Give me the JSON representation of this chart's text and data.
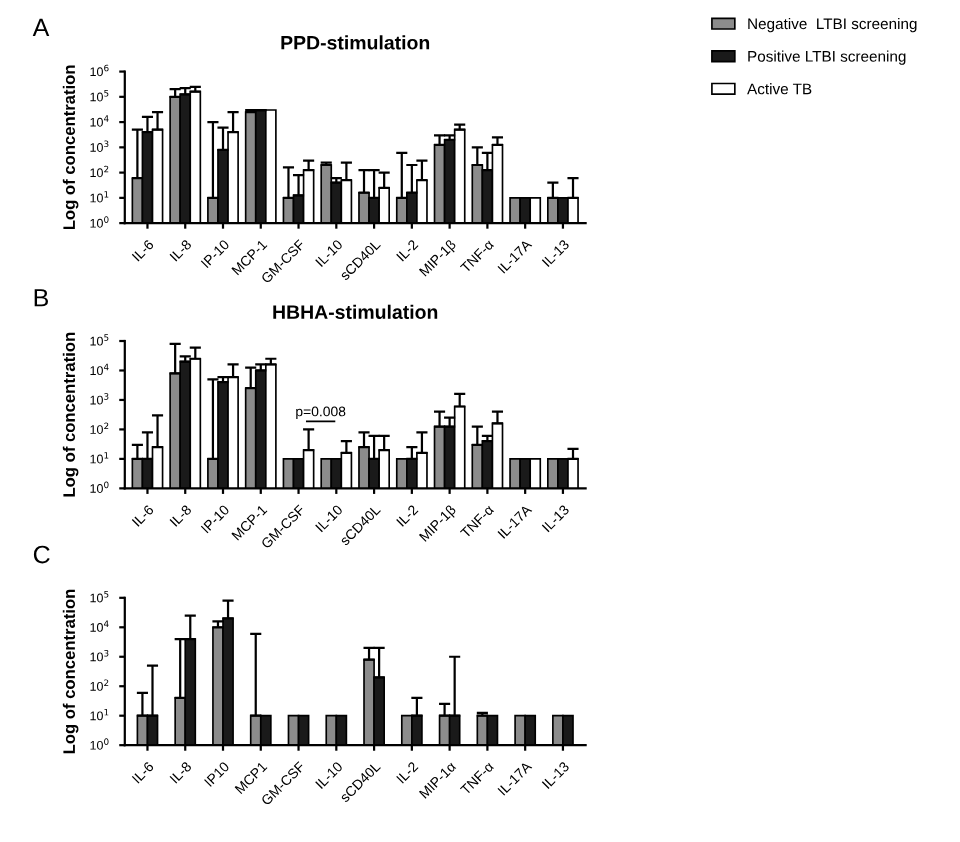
{
  "chart_data": [
    {
      "type": "bar",
      "title": "PPD-stimulation",
      "ylabel": "Log of concentration",
      "annotations": [
        "A"
      ],
      "categories": [
        "IL-6",
        "IL-8",
        "IP-10",
        "MCP-1",
        "GM-CSF",
        "IL-10",
        "sCD40L",
        "IL-2",
        "MIP-1β",
        "TNF-α",
        "IL-17A",
        "IL-13"
      ],
      "log": true,
      "ylim": [
        1,
        1000000
      ],
      "yticks": [
        {
          "value": 1,
          "label": "10$^{0}$"
        },
        {
          "value": 10,
          "label": "10$^{1}$"
        },
        {
          "value": 100,
          "label": "10$^{2}$"
        },
        {
          "value": 1000,
          "label": "10$^{3}$"
        },
        {
          "value": 10000,
          "label": "10$^{4}$"
        },
        {
          "value": 100000,
          "label": "10$^{5}$"
        },
        {
          "value": 1000000,
          "label": "10$^{6}$"
        }
      ],
      "legend": "top right",
      "grid": false,
      "series": [
        {
          "name": "Negative  LTBI screening",
          "color": "#8c8c8c",
          "values": [
            60,
            100000,
            10,
            25000,
            10,
            200,
            16,
            10,
            1250,
            200,
            10,
            10
          ],
          "errors": [
            [
              60,
              5000
            ],
            [
              100000,
              200000
            ],
            [
              10,
              10000
            ],
            [
              25000,
              30000
            ],
            [
              10,
              160
            ],
            [
              200,
              250
            ],
            [
              16,
              125
            ],
            [
              10,
              600
            ],
            [
              1250,
              3000
            ],
            [
              200,
              1000
            ],
            null,
            [
              10,
              40
            ]
          ]
        },
        {
          "name": "Positive LTBI screening",
          "color": "#1a1a1a",
          "values": [
            4000,
            125000,
            800,
            30000,
            12.5,
            40,
            10,
            16,
            2000,
            125,
            10,
            10
          ],
          "errors": [
            [
              4000,
              16000
            ],
            [
              125000,
              220000
            ],
            [
              800,
              6000
            ],
            [
              30000,
              30000
            ],
            [
              12.5,
              80
            ],
            [
              40,
              60
            ],
            [
              10,
              125
            ],
            [
              16,
              200
            ],
            [
              2000,
              3000
            ],
            [
              125,
              600
            ],
            null,
            null
          ]
        },
        {
          "name": "Active TB",
          "color": "#ffffff",
          "values": [
            5000,
            160000,
            4000,
            30000,
            125,
            50,
            25,
            50,
            5000,
            1250,
            10,
            10
          ],
          "errors": [
            [
              5000,
              25000
            ],
            [
              160000,
              250000
            ],
            [
              4000,
              25000
            ],
            null,
            [
              125,
              300
            ],
            [
              50,
              250
            ],
            [
              25,
              100
            ],
            [
              50,
              300
            ],
            [
              5000,
              8000
            ],
            [
              1250,
              2500
            ],
            null,
            [
              10,
              60
            ]
          ]
        }
      ]
    },
    {
      "type": "bar",
      "title": "HBHA-stimulation",
      "ylabel": "Log of concentration",
      "annotations": [
        "B",
        "p=0.008"
      ],
      "categories": [
        "IL-6",
        "IL-8",
        "IP-10",
        "MCP-1",
        "GM-CSF",
        "IL-10",
        "sCD40L",
        "IL-2",
        "MIP-1β",
        "TNF-α",
        "IL-17A",
        "IL-13"
      ],
      "log": true,
      "ylim": [
        1,
        100000
      ],
      "yticks": [
        {
          "value": 1,
          "label": "10$^{0}$"
        },
        {
          "value": 10,
          "label": "10$^{1}$"
        },
        {
          "value": 100,
          "label": "10$^{2}$"
        },
        {
          "value": 1000,
          "label": "10$^{3}$"
        },
        {
          "value": 10000,
          "label": "10$^{4}$"
        },
        {
          "value": 100000,
          "label": "10$^{5}$"
        }
      ],
      "grid": false,
      "series": [
        {
          "color": "#8c8c8c",
          "values": [
            10,
            8000,
            10,
            2500,
            10,
            10,
            25,
            10,
            125,
            30,
            10,
            10
          ],
          "errors": [
            [
              10,
              30
            ],
            [
              8000,
              80000
            ],
            [
              10,
              5000
            ],
            [
              2500,
              12500
            ],
            null,
            null,
            [
              25,
              80
            ],
            null,
            [
              125,
              400
            ],
            [
              30,
              125
            ],
            null,
            null
          ]
        },
        {
          "color": "#1a1a1a",
          "values": [
            10,
            20000,
            4000,
            10000,
            10,
            10,
            10,
            10,
            125,
            40,
            10,
            10
          ],
          "errors": [
            [
              10,
              80
            ],
            [
              20000,
              30000
            ],
            [
              4000,
              6000
            ],
            [
              10000,
              16000
            ],
            null,
            null,
            [
              10,
              60
            ],
            [
              10,
              25
            ],
            [
              125,
              250
            ],
            [
              40,
              60
            ],
            null,
            null
          ]
        },
        {
          "color": "#ffffff",
          "values": [
            25,
            25000,
            6000,
            16000,
            20,
            16,
            20,
            16,
            600,
            160,
            10,
            10
          ],
          "errors": [
            [
              25,
              300
            ],
            [
              25000,
              60000
            ],
            [
              6000,
              16000
            ],
            [
              16000,
              25000
            ],
            [
              20,
              100
            ],
            [
              16,
              40
            ],
            [
              20,
              60
            ],
            [
              16,
              80
            ],
            [
              600,
              1600
            ],
            [
              160,
              400
            ],
            null,
            [
              10,
              22
            ]
          ]
        }
      ]
    },
    {
      "type": "bar",
      "ylabel": "Log of concentration",
      "annotations": [
        "C"
      ],
      "categories": [
        "IL-6",
        "IL-8",
        "IP10",
        "MCP1",
        "GM-CSF",
        "IL-10",
        "sCD40L",
        "IL-2",
        "MIP-1α",
        "TNF-α",
        "IL-17A",
        "IL-13"
      ],
      "log": true,
      "ylim": [
        1,
        100000
      ],
      "yticks": [
        {
          "value": 1,
          "label": "10$^{0}$"
        },
        {
          "value": 10,
          "label": "10$^{1}$"
        },
        {
          "value": 100,
          "label": "10$^{2}$"
        },
        {
          "value": 1000,
          "label": "10$^{3}$"
        },
        {
          "value": 10000,
          "label": "10$^{4}$"
        },
        {
          "value": 100000,
          "label": "10$^{5}$"
        }
      ],
      "grid": false,
      "series": [
        {
          "color": "#8c8c8c",
          "values": [
            10,
            40,
            10000,
            10,
            10,
            10,
            800,
            10,
            10,
            10,
            10,
            10
          ],
          "errors": [
            [
              10,
              60
            ],
            [
              40,
              4000
            ],
            [
              10000,
              16000
            ],
            [
              10,
              6000
            ],
            null,
            null,
            [
              800,
              2000
            ],
            null,
            [
              10,
              25
            ],
            [
              10,
              12.5
            ],
            null,
            null
          ]
        },
        {
          "color": "#1a1a1a",
          "values": [
            10,
            4000,
            20000,
            10,
            10,
            10,
            200,
            10,
            10,
            10,
            10,
            10
          ],
          "errors": [
            [
              10,
              500
            ],
            [
              4000,
              25000
            ],
            [
              20000,
              80000
            ],
            null,
            null,
            null,
            [
              200,
              2000
            ],
            [
              10,
              40
            ],
            [
              10,
              1000
            ],
            null,
            null,
            null
          ]
        }
      ]
    }
  ]
}
